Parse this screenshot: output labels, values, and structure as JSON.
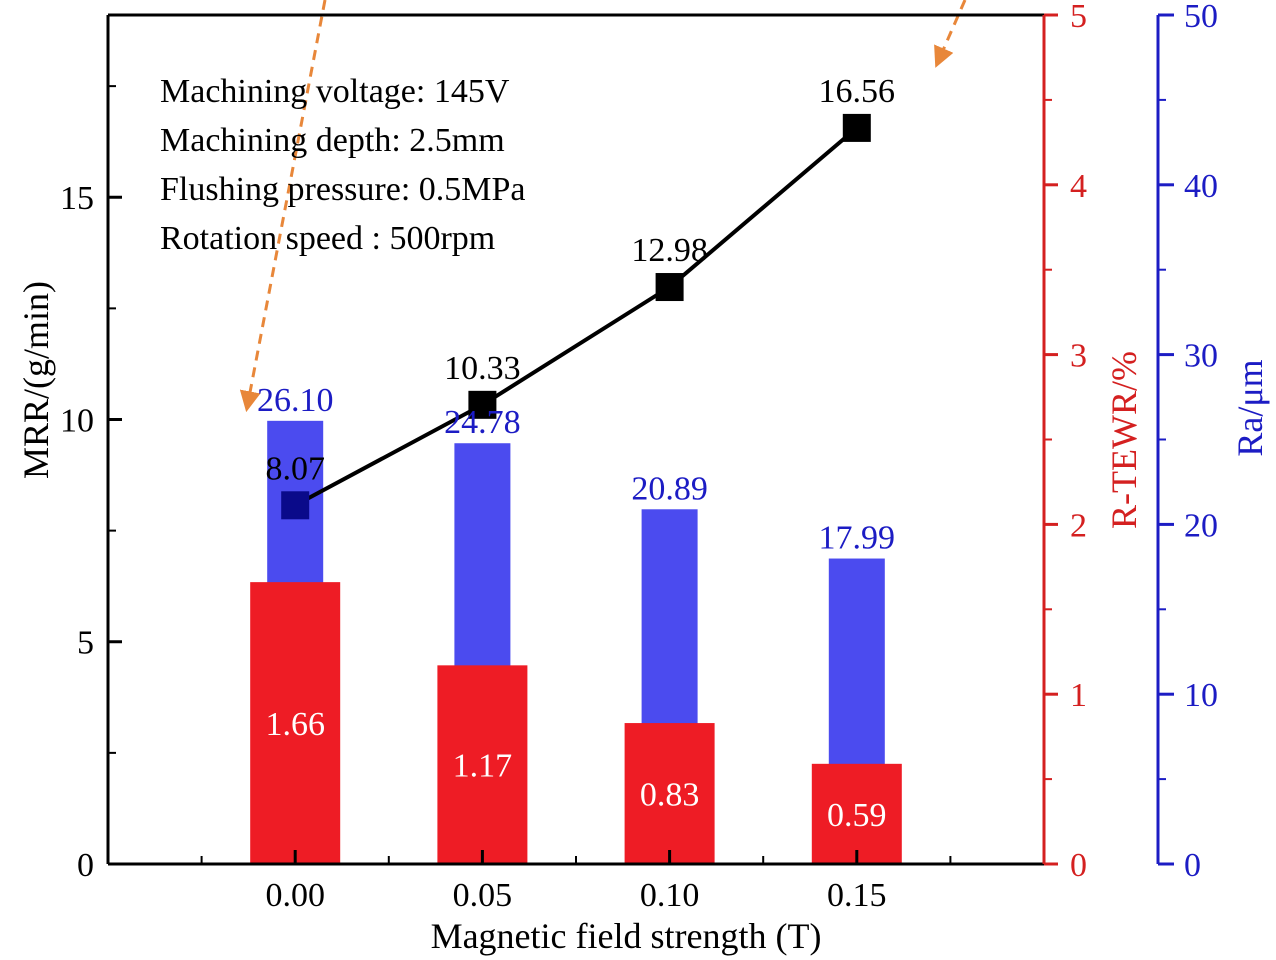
{
  "chart_data": {
    "type": "bar",
    "categories": [
      "0.00",
      "0.05",
      "0.10",
      "0.15"
    ],
    "x_values": [
      0.0,
      0.05,
      0.1,
      0.15
    ],
    "xlabel": "Magnetic field strength (T)",
    "xlim": [
      -0.05,
      0.2
    ],
    "annotations": [
      "Machining voltage: 145V",
      "Machining depth: 2.5mm",
      "Flushing pressure: 0.5MPa",
      "Rotation speed : 500rpm"
    ],
    "axes": {
      "left": {
        "label": "MRR/(g/min)",
        "ylim": [
          0,
          19.1
        ],
        "ticks": [
          0,
          5,
          10,
          15
        ],
        "color": "#000000"
      },
      "red": {
        "label": "R-TEWR/%",
        "ylim": [
          0,
          5
        ],
        "ticks": [
          0,
          1,
          2,
          3,
          4,
          5
        ],
        "color": "#d42020"
      },
      "blue": {
        "label": "Ra/μm",
        "ylim": [
          0,
          50
        ],
        "ticks": [
          0,
          10,
          20,
          30,
          40,
          50
        ],
        "color": "#1c1cc4"
      }
    },
    "series": [
      {
        "axis": "blue",
        "type": "bar",
        "color": "#4b4bef",
        "values": [
          26.1,
          24.78,
          20.89,
          17.99
        ],
        "labels": [
          "26.10",
          "24.78",
          "20.89",
          "17.99"
        ]
      },
      {
        "axis": "red",
        "type": "bar",
        "color": "#ee1c25",
        "values": [
          1.66,
          1.17,
          0.83,
          0.59
        ],
        "labels": [
          "1.66",
          "1.17",
          "0.83",
          "0.59"
        ]
      },
      {
        "axis": "left",
        "type": "line",
        "color": "#000000",
        "values": [
          8.07,
          10.33,
          12.98,
          16.56
        ],
        "labels": [
          "8.07",
          "10.33",
          "12.98",
          "16.56"
        ]
      }
    ],
    "arrow_color": "#e8873a"
  }
}
